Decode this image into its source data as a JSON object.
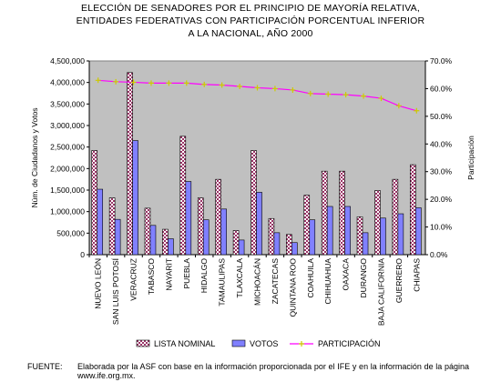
{
  "title_lines": [
    "ELECCIÓN DE SENADORES POR EL PRINCIPIO DE MAYORÍA RELATIVA,",
    "ENTIDADES FEDERATIVAS CON PARTICIPACIÓN PORCENTUAL INFERIOR",
    "A LA NACIONAL, AÑO 2000"
  ],
  "source": {
    "label": "FUENTE:",
    "text": "Elaborada por la ASF con base en la información proporcionada por el IFE y en la información de la página www.ife.org.mx."
  },
  "colors": {
    "lista_nominal": "#993366",
    "votos": "#8080ff",
    "participacion": "#ff00ff",
    "plot_bg": "#c0c0c0"
  },
  "chart_data": {
    "type": "bar",
    "categories": [
      "NUEVO LEÓN",
      "SAN LUIS POTOSÍ",
      "VERACRUZ",
      "TABASCO",
      "NAYARIT",
      "PUEBLA",
      "HIDALGO",
      "TAMAULIPAS",
      "TLAXCALA",
      "MICHOACÁN",
      "ZACATECAS",
      "QUINTANA ROO",
      "COAHUILA",
      "CHIHUAHUA",
      "OAXACA",
      "DURANGO",
      "BAJA CALIFORNIA",
      "GUERRERO",
      "CHIAPAS"
    ],
    "series": [
      {
        "name": "LISTA NOMINAL",
        "type": "bar",
        "axis": "left",
        "values": [
          2420000,
          1320000,
          4230000,
          1080000,
          590000,
          2750000,
          1320000,
          1750000,
          560000,
          2420000,
          840000,
          470000,
          1380000,
          1940000,
          1940000,
          880000,
          1490000,
          1750000,
          2090000
        ]
      },
      {
        "name": "VOTOS",
        "type": "bar",
        "axis": "left",
        "values": [
          1520000,
          820000,
          2650000,
          680000,
          370000,
          1700000,
          810000,
          1060000,
          340000,
          1450000,
          510000,
          280000,
          810000,
          1120000,
          1120000,
          510000,
          850000,
          950000,
          1090000
        ]
      },
      {
        "name": "PARTICIPACIÓN",
        "type": "line",
        "axis": "right",
        "values": [
          63.0,
          62.5,
          62.3,
          62.0,
          62.0,
          62.0,
          61.5,
          61.3,
          60.8,
          60.3,
          60.0,
          59.5,
          58.2,
          58.0,
          57.8,
          57.3,
          56.5,
          53.8,
          52.0
        ]
      }
    ],
    "ylabel": "Núm. de Ciudadanos y Votos",
    "y2label": "Participación",
    "ylim": [
      0,
      4500000
    ],
    "y2lim": [
      0,
      70
    ],
    "yticks": [
      "0",
      "500,000",
      "1,000,000",
      "1,500,000",
      "2,000,000",
      "2,500,000",
      "3,000,000",
      "3,500,000",
      "4,000,000",
      "4,500,000"
    ],
    "y2ticks": [
      "0.0%",
      "10.0%",
      "20.0%",
      "30.0%",
      "40.0%",
      "50.0%",
      "60.0%",
      "70.0%"
    ],
    "legend_position": "bottom",
    "grid": false
  }
}
